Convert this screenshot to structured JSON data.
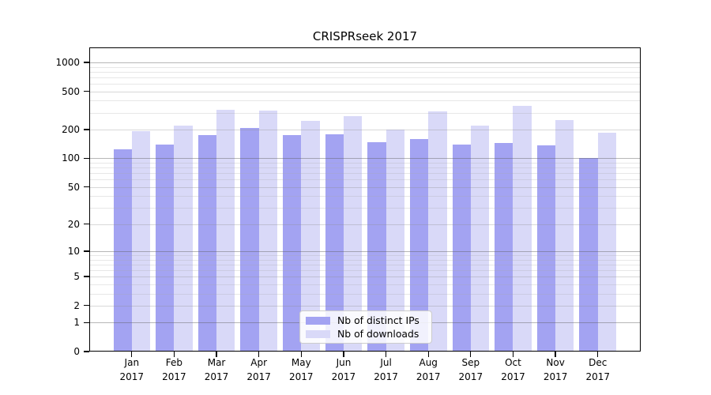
{
  "chart_data": {
    "type": "bar",
    "title": "CRISPRseek 2017",
    "categories": [
      "Jan 2017",
      "Feb 2017",
      "Mar 2017",
      "Apr 2017",
      "May 2017",
      "Jun 2017",
      "Jul 2017",
      "Aug 2017",
      "Sep 2017",
      "Oct 2017",
      "Nov 2017",
      "Dec 2017"
    ],
    "series": [
      {
        "name": "Nb of distinct IPs",
        "color": "#a3a3f2",
        "values": [
          125,
          140,
          176,
          209,
          175,
          178,
          148,
          160,
          139,
          146,
          137,
          100
        ]
      },
      {
        "name": "Nb of downloads",
        "color": "#d9d9f8",
        "values": [
          192,
          220,
          322,
          315,
          246,
          277,
          199,
          312,
          220,
          356,
          251,
          185
        ]
      }
    ],
    "xlabel": "",
    "ylabel": "",
    "yscale": "log10(1+value)",
    "y_ticks": [
      0,
      1,
      2,
      5,
      10,
      20,
      50,
      100,
      200,
      500,
      1000
    ],
    "y_minor_ticks": [
      3,
      4,
      6,
      7,
      8,
      9,
      30,
      40,
      60,
      70,
      80,
      90,
      300,
      400,
      600,
      700,
      800,
      900
    ],
    "ylim": [
      0,
      1400
    ],
    "grid": true,
    "legend": {
      "position": "lower center inside plot",
      "entries": [
        "Nb of distinct IPs",
        "Nb of downloads"
      ]
    }
  },
  "colors": {
    "bar_distinct_ips": "#a3a3f2",
    "bar_downloads": "#d9d9f8",
    "grid_major": "#b4b4b4",
    "grid_labeled": "#d8d8d8",
    "grid_minor": "#e6e6e6",
    "axis": "#000000",
    "background": "#ffffff",
    "legend_border": "#cccccc"
  }
}
